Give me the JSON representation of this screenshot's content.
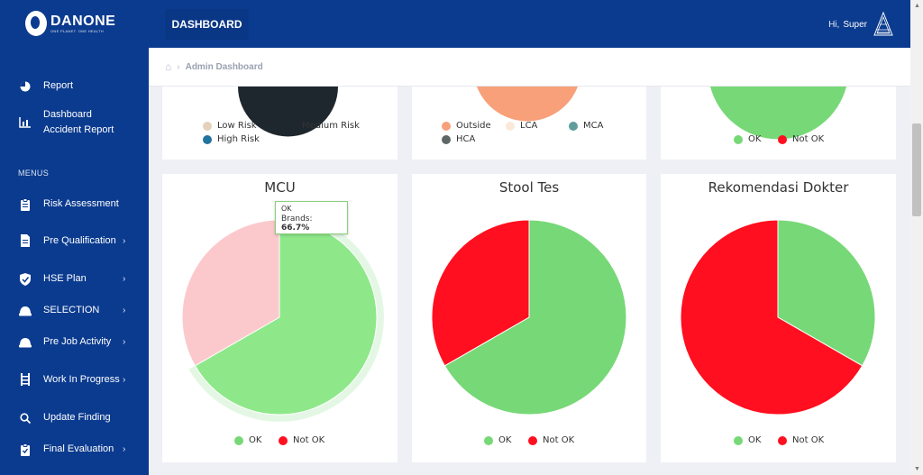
{
  "brand": {
    "name": "DANONE",
    "tagline": "ONE PLANET. ONE HEALTH"
  },
  "header": {
    "tab": "DASHBOARD",
    "greeting": "Hi,",
    "user": "Super"
  },
  "breadcrumb": {
    "page": "Admin Dashboard"
  },
  "sidebar": {
    "top_items": [
      {
        "label": "Report",
        "icon": "pie-chart-icon"
      },
      {
        "label": "Dashboard Accident Report",
        "icon": "bar-chart-icon"
      }
    ],
    "section_label": "MENUS",
    "menu_items": [
      {
        "label": "Risk Assessment",
        "icon": "clipboard-icon",
        "has_submenu": false
      },
      {
        "label": "Pre Qualification",
        "icon": "document-icon",
        "has_submenu": true
      },
      {
        "label": "HSE Plan",
        "icon": "shield-check-icon",
        "has_submenu": true
      },
      {
        "label": "SELECTION",
        "icon": "helmet-icon",
        "has_submenu": true
      },
      {
        "label": "Pre Job Activity",
        "icon": "helmet-icon",
        "has_submenu": true
      },
      {
        "label": "Work In Progress",
        "icon": "ladder-icon",
        "has_submenu": true
      },
      {
        "label": "Update Finding",
        "icon": "search-icon",
        "has_submenu": false
      },
      {
        "label": "Final Evaluation",
        "icon": "clipboard-check-icon",
        "has_submenu": true
      }
    ]
  },
  "colors": {
    "ok": "#77d877",
    "not_ok": "#ff0f1f",
    "low_risk": "#e3d2b9",
    "medium_risk": "#1f272e",
    "high_risk": "#22739e",
    "outside": "#f7a07a",
    "lca": "#fae9da",
    "mca": "#5f9e9b",
    "hca": "#5f6766"
  },
  "top_cards": [
    {
      "legend": [
        "Low Risk",
        "Medium Risk",
        "High Risk"
      ]
    },
    {
      "legend": [
        "Outside",
        "LCA",
        "MCA",
        "HCA"
      ]
    },
    {
      "legend": [
        "OK",
        "Not OK"
      ]
    }
  ],
  "tooltip": {
    "title": "OK",
    "label": "Brands:",
    "value": "66.7%"
  },
  "chart_data": [
    {
      "type": "pie",
      "title": "MCU",
      "categories": [
        "OK",
        "Not OK"
      ],
      "values": [
        66.7,
        33.3
      ],
      "highlighted": "OK",
      "legend_position": "bottom"
    },
    {
      "type": "pie",
      "title": "Stool Tes",
      "categories": [
        "OK",
        "Not OK"
      ],
      "values": [
        66.7,
        33.3
      ],
      "legend_position": "bottom"
    },
    {
      "type": "pie",
      "title": "Rekomendasi Dokter",
      "categories": [
        "OK",
        "Not OK"
      ],
      "values": [
        33.3,
        66.7
      ],
      "legend_position": "bottom"
    }
  ]
}
